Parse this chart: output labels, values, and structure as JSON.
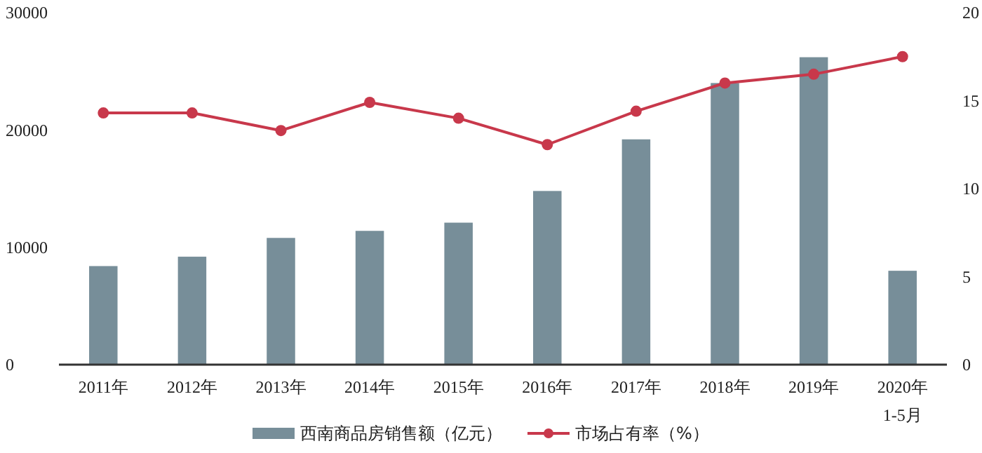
{
  "chart_data": {
    "type": "bar",
    "categories": [
      "2011年",
      "2012年",
      "2013年",
      "2014年",
      "2015年",
      "2016年",
      "2017年",
      "2018年",
      "2019年",
      "2020年\n1-5月"
    ],
    "series": [
      {
        "name": "西南商品房销售额（亿元）",
        "color": "#778e99",
        "values": [
          8400,
          9200,
          10800,
          11400,
          12100,
          14800,
          19200,
          24000,
          26200,
          8000
        ]
      },
      {
        "name": "市场占有率（%）",
        "type": "line",
        "axis": "y2",
        "color": "#c8384b",
        "marker": "circle",
        "values": [
          14.3,
          14.3,
          13.3,
          14.9,
          14.0,
          12.5,
          14.4,
          16.0,
          16.5,
          17.5
        ]
      }
    ],
    "ylim": [
      0,
      30000
    ],
    "yticks": [
      0,
      10000,
      20000,
      30000
    ],
    "y2lim": [
      0,
      20
    ],
    "y2ticks": [
      0,
      5,
      10,
      15,
      20
    ],
    "grid": false,
    "legend": "bottom"
  }
}
